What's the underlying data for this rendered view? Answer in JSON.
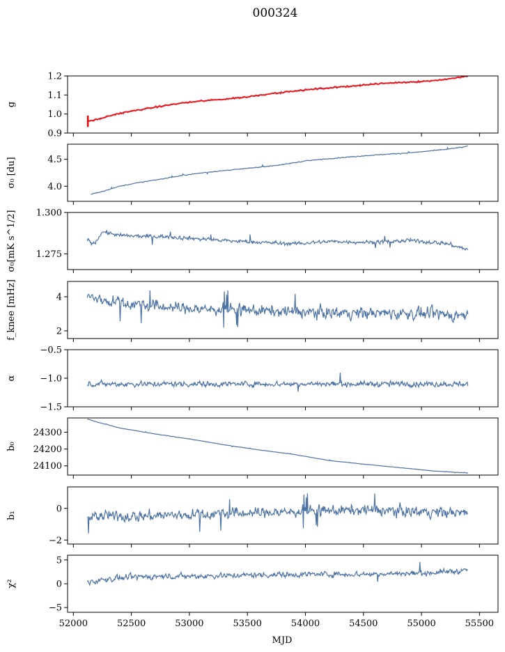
{
  "figure": {
    "title": "000324"
  },
  "chart_data": {
    "type": "line",
    "x_domain": [
      51950,
      55660
    ],
    "x_ticks": [
      52000,
      52500,
      53000,
      53500,
      54000,
      54500,
      55000,
      55500
    ],
    "x_tick_labels": [
      "52000",
      "52500",
      "53000",
      "53500",
      "54000",
      "54500",
      "55000",
      "55500"
    ],
    "xlabel": "MJD",
    "line_color": "#4c72a4",
    "overlay_color": "#ff0000",
    "panels": [
      {
        "id": "g",
        "ylabel": "g",
        "ylim": [
          0.9,
          1.2
        ],
        "yticks": [
          0.9,
          1.0,
          1.1,
          1.2
        ],
        "ytick_labels": [
          "0.9",
          "1.0",
          "1.1",
          "1.2"
        ],
        "x": [
          52120,
          52200,
          52350,
          52500,
          52700,
          52900,
          53100,
          53300,
          53500,
          53700,
          53900,
          54100,
          54300,
          54500,
          54700,
          54900,
          55100,
          55300,
          55400
        ],
        "y": [
          0.962,
          0.97,
          0.997,
          1.015,
          1.035,
          1.055,
          1.068,
          1.078,
          1.09,
          1.107,
          1.12,
          1.132,
          1.142,
          1.152,
          1.162,
          1.168,
          1.175,
          1.19,
          1.2
        ],
        "noise": 0.002,
        "overlay_red": true
      },
      {
        "id": "sigma0_du",
        "ylabel": "σ₀ [du]",
        "ylim": [
          3.72,
          4.78
        ],
        "yticks": [
          4.0,
          4.5
        ],
        "ytick_labels": [
          "4.0",
          "4.5"
        ],
        "x": [
          52150,
          52250,
          52400,
          52600,
          52800,
          53000,
          53200,
          53500,
          53800,
          54000,
          54300,
          54600,
          54900,
          55200,
          55400
        ],
        "y": [
          3.85,
          3.9,
          4.0,
          4.08,
          4.15,
          4.22,
          4.27,
          4.33,
          4.4,
          4.47,
          4.53,
          4.58,
          4.62,
          4.68,
          4.74
        ],
        "noise": 0.008
      },
      {
        "id": "sigma0_mK",
        "ylabel": "σ₀[mK s^1/2]",
        "ylim": [
          1.2655,
          1.3
        ],
        "yticks": [
          1.275,
          1.3
        ],
        "ytick_labels": [
          "1.275",
          "1.300"
        ],
        "x": [
          52120,
          52180,
          52250,
          52400,
          52600,
          52800,
          53000,
          53300,
          53600,
          53900,
          54200,
          54600,
          54900,
          55200,
          55400
        ],
        "y": [
          1.2835,
          1.281,
          1.2885,
          1.286,
          1.2855,
          1.2855,
          1.2845,
          1.283,
          1.282,
          1.281,
          1.2825,
          1.282,
          1.283,
          1.2815,
          1.2775
        ],
        "noise": 0.0012
      },
      {
        "id": "fknee",
        "ylabel": "f_knee [mHz]",
        "ylim": [
          1.55,
          4.9
        ],
        "yticks": [
          2,
          4
        ],
        "ytick_labels": [
          "2",
          "4"
        ],
        "x": [
          52120,
          52300,
          52600,
          53000,
          53500,
          54000,
          54500,
          55000,
          55400
        ],
        "y": [
          4.0,
          3.75,
          3.5,
          3.3,
          3.2,
          3.1,
          3.05,
          3.0,
          2.9
        ],
        "noise": 0.35
      },
      {
        "id": "alpha",
        "ylabel": "α",
        "ylim": [
          -1.5,
          -0.5
        ],
        "yticks": [
          -1.5,
          -1.0,
          -0.5
        ],
        "ytick_labels": [
          "−1.5",
          "−1.0",
          "−0.5"
        ],
        "x": [
          52120,
          55400
        ],
        "y": [
          -1.1,
          -1.1
        ],
        "noise": 0.05
      },
      {
        "id": "b0",
        "ylabel": "b₀",
        "ylim": [
          24045,
          24385
        ],
        "yticks": [
          24100,
          24200,
          24300
        ],
        "ytick_labels": [
          "24100",
          "24200",
          "24300"
        ],
        "x": [
          52120,
          52200,
          52400,
          52700,
          53000,
          53300,
          53600,
          53900,
          54200,
          54500,
          54800,
          55100,
          55400
        ],
        "y": [
          24378,
          24362,
          24325,
          24290,
          24260,
          24225,
          24195,
          24168,
          24132,
          24110,
          24090,
          24070,
          24057
        ],
        "noise": 1.2
      },
      {
        "id": "b1",
        "ylabel": "b₁",
        "ylim": [
          -2.25,
          1.35
        ],
        "yticks": [
          -2,
          0
        ],
        "ytick_labels": [
          "−2",
          "0"
        ],
        "x": [
          52120,
          52500,
          53000,
          53500,
          54000,
          54500,
          55000,
          55400
        ],
        "y": [
          -0.5,
          -0.5,
          -0.4,
          -0.3,
          -0.2,
          -0.1,
          -0.2,
          -0.3
        ],
        "noise": 0.35
      },
      {
        "id": "chi2",
        "ylabel": "χ²",
        "ylim": [
          -6,
          6
        ],
        "yticks": [
          -5,
          0,
          5
        ],
        "ytick_labels": [
          "−5",
          "0",
          "5"
        ],
        "x": [
          52120,
          52300,
          52600,
          53000,
          53500,
          54000,
          54500,
          55000,
          55400
        ],
        "y": [
          0.3,
          1.0,
          1.5,
          1.6,
          1.8,
          2.0,
          2.0,
          2.2,
          2.8
        ],
        "noise": 0.6
      }
    ]
  }
}
